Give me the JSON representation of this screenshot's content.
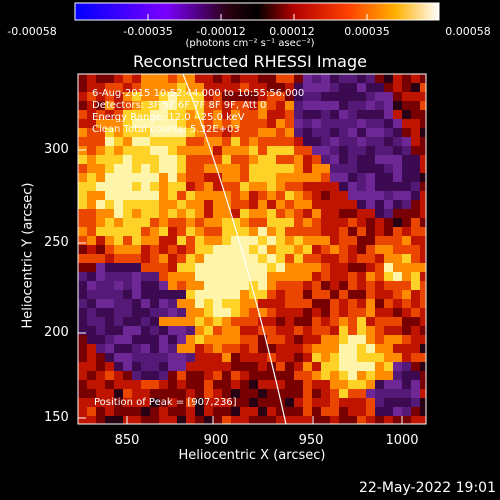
{
  "colorbar": {
    "ticks": [
      "-0.00058",
      "-0.00035",
      "-0.00012",
      "0.00012",
      "0.00035",
      "0.00058"
    ],
    "units": "(photons cm⁻² s⁻¹ asec⁻²)"
  },
  "title": "Reconstructed RHESSI Image",
  "info": {
    "time": "6-Aug-2015 10:52:44.000 to 10:55:56.000",
    "detectors": "Detectors: 3F 5F 6F 7F 8F 9F, Att 0",
    "energy": "Energy Range: 12.0 - 25.0 keV",
    "clean": "Clean     Total counts: 5.32E+03",
    "peak": "Position of Peak = [907,236]"
  },
  "axes": {
    "xlabel": "Heliocentric X (arcsec)",
    "ylabel": "Heliocentric Y (arcsec)",
    "xticks": [
      "850",
      "900",
      "950",
      "1000"
    ],
    "yticks": [
      "300",
      "250",
      "200",
      "150"
    ]
  },
  "timestamp": "22-May-2022 19:01",
  "colors": {
    "background": "#000000",
    "axes": "#ffffff"
  }
}
